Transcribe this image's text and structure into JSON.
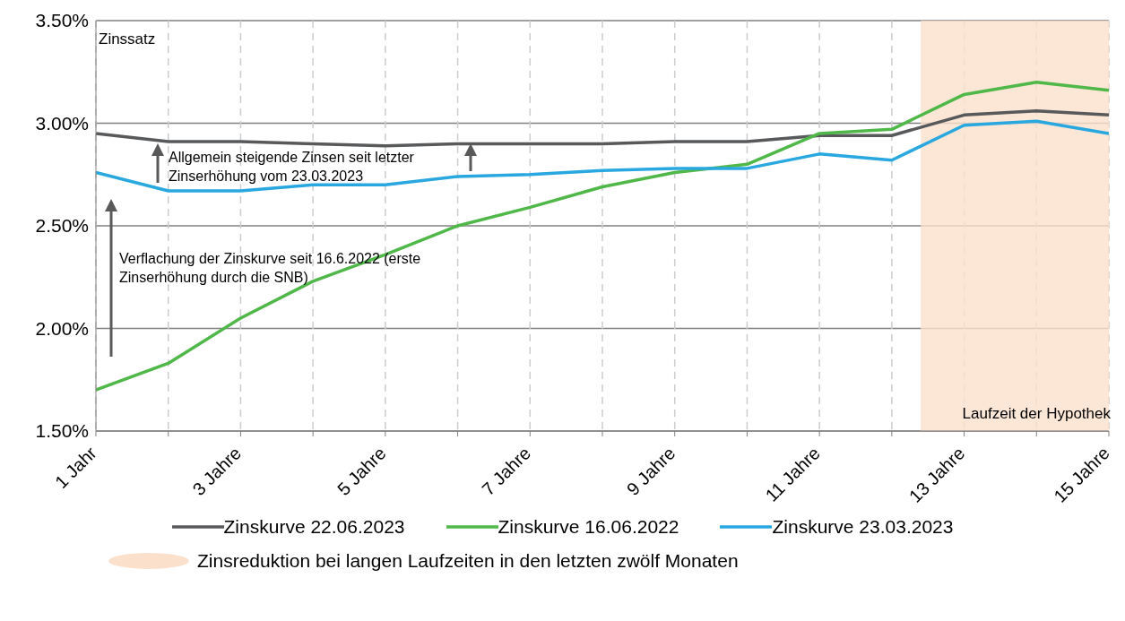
{
  "chart_data": {
    "type": "line",
    "xlabel": "Laufzeit der Hypothek",
    "ylabel": "Zinssatz",
    "x": [
      1,
      2,
      3,
      4,
      5,
      6,
      7,
      8,
      9,
      10,
      11,
      12,
      13,
      14,
      15
    ],
    "xlim": [
      1,
      15
    ],
    "xticks": [
      {
        "value": 1,
        "label": "1 Jahr"
      },
      {
        "value": 2,
        "label": null
      },
      {
        "value": 3,
        "label": "3 Jahre"
      },
      {
        "value": 4,
        "label": null
      },
      {
        "value": 5,
        "label": "5 Jahre"
      },
      {
        "value": 6,
        "label": null
      },
      {
        "value": 7,
        "label": "7 Jahre"
      },
      {
        "value": 8,
        "label": null
      },
      {
        "value": 9,
        "label": "9 Jahre"
      },
      {
        "value": 10,
        "label": null
      },
      {
        "value": 11,
        "label": "11 Jahre"
      },
      {
        "value": 12,
        "label": null
      },
      {
        "value": 13,
        "label": "13 Jahre"
      },
      {
        "value": 14,
        "label": null
      },
      {
        "value": 15,
        "label": "15 Jahre"
      }
    ],
    "ylim": [
      1.5,
      3.5
    ],
    "yticks": [
      {
        "value": 1.5,
        "label": "1.50%"
      },
      {
        "value": 2,
        "label": "2.00%"
      },
      {
        "value": 2.5,
        "label": "2.50%"
      },
      {
        "value": 3,
        "label": "3.00%"
      },
      {
        "value": 3.5,
        "label": "3.50%"
      }
    ],
    "series": [
      {
        "name": "Zinskurve 22.06.2023",
        "color": "#58595b",
        "values": [
          2.95,
          2.91,
          2.91,
          2.9,
          2.89,
          2.9,
          2.9,
          2.9,
          2.91,
          2.91,
          2.94,
          2.94,
          3.04,
          3.06,
          3.04
        ]
      },
      {
        "name": "Zinskurve 16.06.2022",
        "color": "#4fb848",
        "values": [
          1.7,
          1.83,
          2.05,
          2.23,
          2.36,
          2.5,
          2.59,
          2.69,
          2.76,
          2.8,
          2.95,
          2.97,
          3.14,
          3.2,
          3.16
        ]
      },
      {
        "name": "Zinskurve 23.03.2023",
        "color": "#29a8e0",
        "values": [
          2.76,
          2.67,
          2.67,
          2.7,
          2.7,
          2.74,
          2.75,
          2.77,
          2.78,
          2.78,
          2.85,
          2.82,
          2.99,
          3.01,
          2.95
        ]
      }
    ],
    "bands": [
      {
        "axis": "x",
        "from": 12.4,
        "to": 15,
        "label": "Zinsreduktion bei langen Laufzeiten in den letzten zwölf Monaten",
        "color": "#fbe0cc"
      }
    ],
    "annotations": [
      "Allgemein steigende Zinsen seit letzter Zinserhöhung vom 23.03.2023",
      "Verflachung der Zinskurve seit 16.6.2022 (erste Zinserhöhung durch die SNB)"
    ],
    "grid": true,
    "legend": "bottom",
    "marker": "none",
    "line_style": "solid"
  }
}
